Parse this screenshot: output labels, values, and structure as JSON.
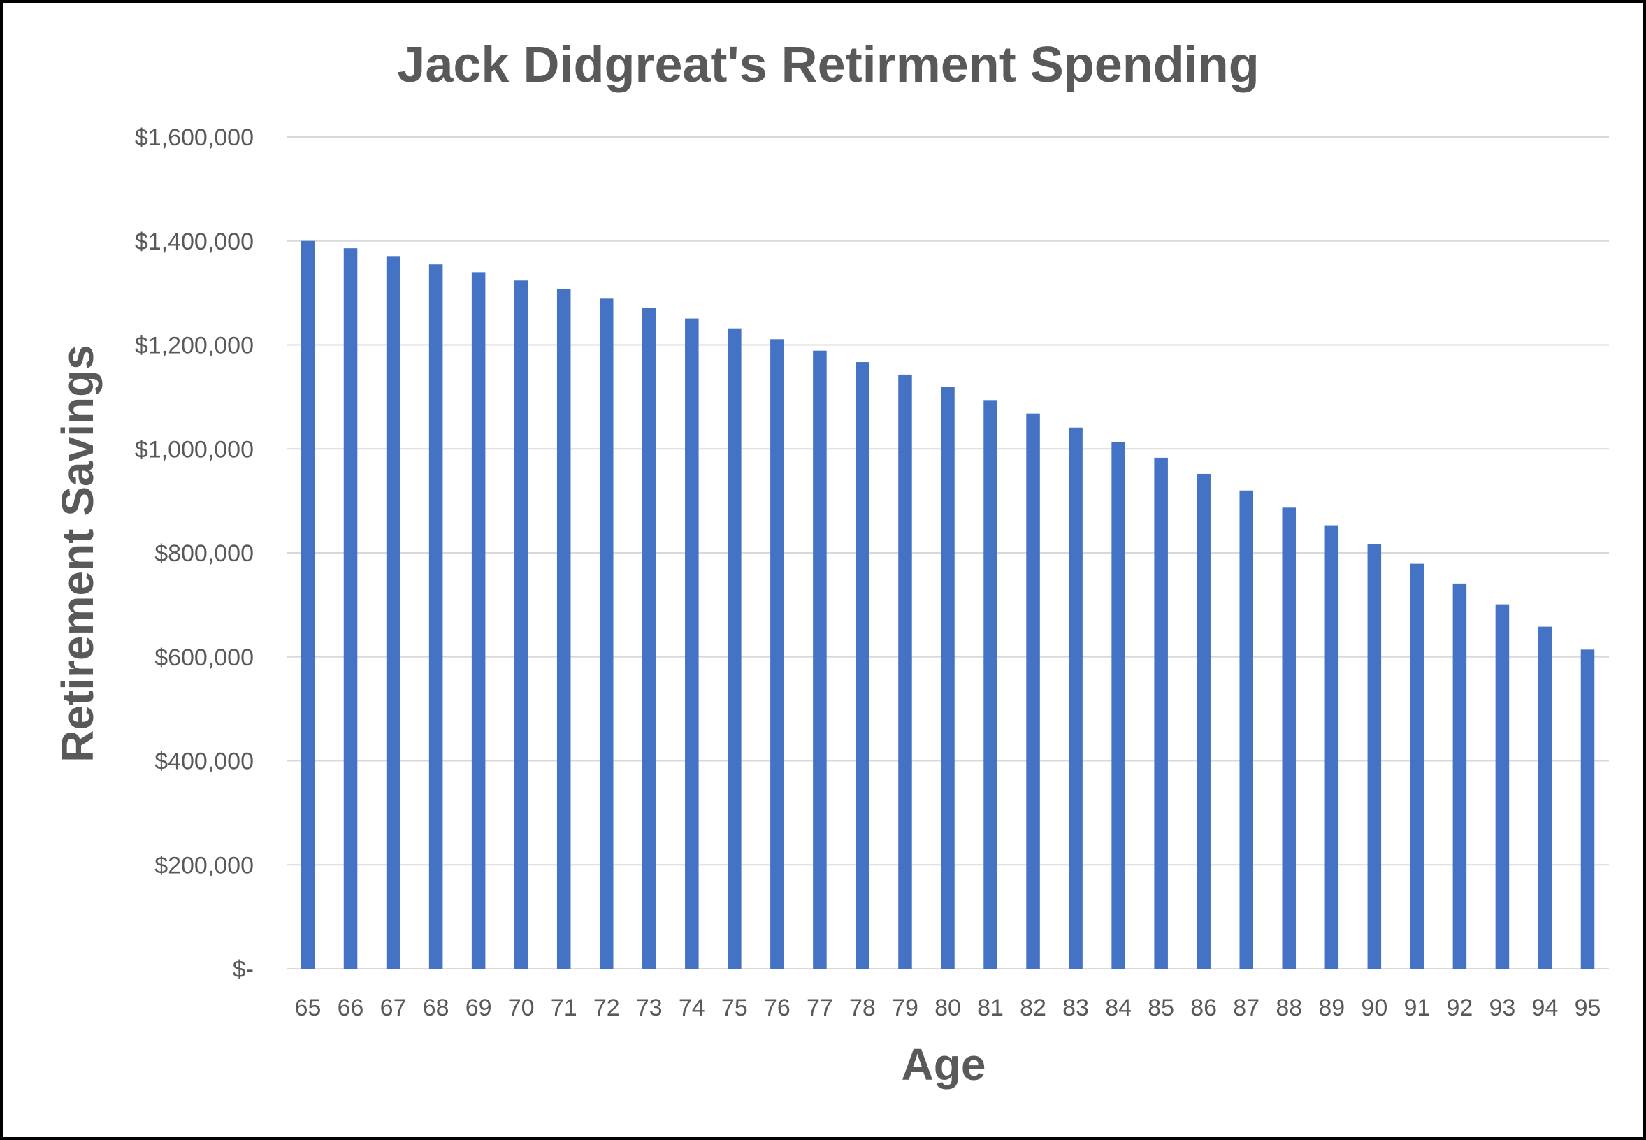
{
  "chart_data": {
    "type": "bar",
    "title": "Jack Didgreat's Retirment Spending",
    "xlabel": "Age",
    "ylabel": "Retirement Savings",
    "ylim": [
      0,
      1600000
    ],
    "yticks": [
      0,
      200000,
      400000,
      600000,
      800000,
      1000000,
      1200000,
      1400000,
      1600000
    ],
    "ytick_labels": [
      "$-",
      "$200,000",
      "$400,000",
      "$600,000",
      "$800,000",
      "$1,000,000",
      "$1,200,000",
      "$1,400,000",
      "$1,600,000"
    ],
    "grid": true,
    "legend": "none",
    "bar_color": "#4472c4",
    "categories": [
      "65",
      "66",
      "67",
      "68",
      "69",
      "70",
      "71",
      "72",
      "73",
      "74",
      "75",
      "76",
      "77",
      "78",
      "79",
      "80",
      "81",
      "82",
      "83",
      "84",
      "85",
      "86",
      "87",
      "88",
      "89",
      "90",
      "91",
      "92",
      "93",
      "94",
      "95"
    ],
    "values": [
      1400000,
      1386000,
      1371000,
      1355000,
      1340000,
      1324000,
      1307000,
      1289000,
      1271000,
      1251000,
      1232000,
      1211000,
      1189000,
      1167000,
      1143000,
      1119000,
      1094000,
      1068000,
      1041000,
      1013000,
      983000,
      952000,
      920000,
      887000,
      853000,
      817000,
      779000,
      741000,
      701000,
      658000,
      614000
    ]
  }
}
